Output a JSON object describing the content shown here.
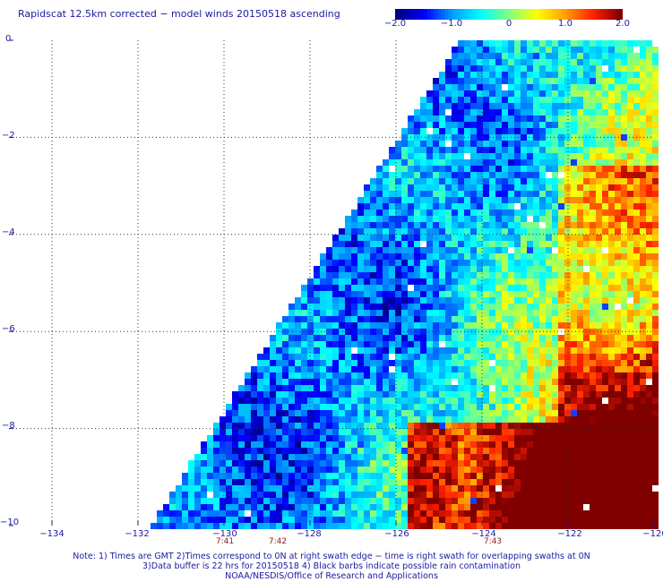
{
  "title": "Rapidscat 12.5km corrected − model winds 20150518 ascending",
  "colorbar": {
    "ticks": [
      "−2.0",
      "−1.0",
      "0",
      "1.0",
      "2.0"
    ],
    "colors": [
      "#000080",
      "#0000ff",
      "#00a0ff",
      "#00ffff",
      "#80ff80",
      "#ffff00",
      "#ffa000",
      "#ff2000",
      "#800000"
    ]
  },
  "map": {
    "lon_range": [
      -135,
      -120
    ],
    "lat_range": [
      -10,
      0
    ],
    "x_ticks": [
      "−134",
      "−132",
      "−130",
      "−128",
      "−126",
      "−124",
      "−122",
      "−120"
    ],
    "y_ticks": [
      "0",
      "−2",
      "−4",
      "−6",
      "−8",
      "−10"
    ],
    "time_labels": [
      "7:41",
      "7:42",
      "7:43"
    ],
    "swath_description": "wind difference field, swath left edge runs from about lon -125.8 at lat 0 to -131.5 at lat -10"
  },
  "notes": {
    "line1": "Note: 1) Times are GMT 2)Times correspond to 0N at right swath edge − time is right swath for overlapping swaths at 0N",
    "line2": "3)Data buffer is 22 hrs for 20150518 4) Black barbs indicate possible rain contamination",
    "line3": "NOAA/NESDIS/Office of Research and Applications"
  }
}
